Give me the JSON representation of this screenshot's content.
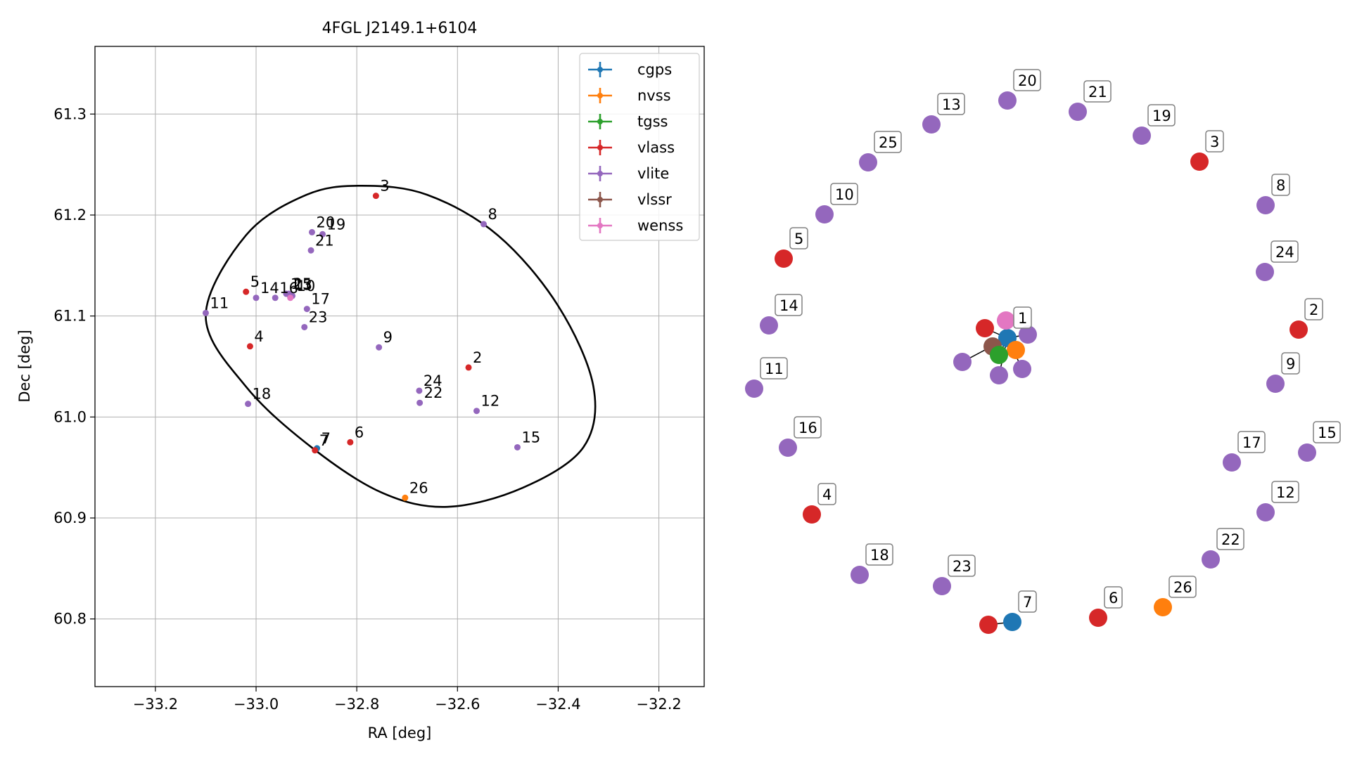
{
  "chart_data": [
    {
      "type": "scatter",
      "title": "4FGL J2149.1+6104",
      "xlabel": "RA [deg]",
      "ylabel": "Dec [deg]",
      "xlim": [
        -33.32,
        -32.11
      ],
      "ylim": [
        60.733,
        61.367
      ],
      "xticks": [
        -33.2,
        -33.0,
        -32.8,
        -32.6,
        -32.4,
        -32.2
      ],
      "xtick_labels": [
        "−33.2",
        "−33.0",
        "−32.8",
        "−32.6",
        "−32.4",
        "−32.2"
      ],
      "yticks": [
        60.8,
        60.9,
        61.0,
        61.1,
        61.2,
        61.3
      ],
      "ytick_labels": [
        "60.8",
        "60.9",
        "61.0",
        "61.1",
        "61.2",
        "61.3"
      ],
      "grid": true,
      "legend_position": "top-right",
      "legend": [
        {
          "name": "cgps",
          "color": "#1f77b4"
        },
        {
          "name": "nvss",
          "color": "#ff7f0e"
        },
        {
          "name": "tgss",
          "color": "#2ca02c"
        },
        {
          "name": "vlass",
          "color": "#d62728"
        },
        {
          "name": "vlite",
          "color": "#9467bd"
        },
        {
          "name": "vlssr",
          "color": "#8c564b"
        },
        {
          "name": "wenss",
          "color": "#e377c2"
        }
      ],
      "ellipse": {
        "center_ra": -32.66,
        "center_dec": 61.07,
        "points": [
          [
            -33.1,
            61.1
          ],
          [
            -33.02,
            61.18
          ],
          [
            -32.9,
            61.22
          ],
          [
            -32.79,
            61.229
          ],
          [
            -32.66,
            61.22
          ],
          [
            -32.52,
            61.18
          ],
          [
            -32.4,
            61.11
          ],
          [
            -32.33,
            61.03
          ],
          [
            -32.35,
            60.97
          ],
          [
            -32.47,
            60.93
          ],
          [
            -32.62,
            60.911
          ],
          [
            -32.75,
            60.925
          ],
          [
            -32.89,
            60.97
          ],
          [
            -33.02,
            61.03
          ],
          [
            -33.1,
            61.1
          ]
        ]
      },
      "points": [
        {
          "id": "1",
          "survey": "vlite",
          "ra": -32.94,
          "dec": 61.122
        },
        {
          "id": "2",
          "survey": "vlass",
          "ra": -32.578,
          "dec": 61.049
        },
        {
          "id": "3",
          "survey": "vlass",
          "ra": -32.762,
          "dec": 61.219
        },
        {
          "id": "4",
          "survey": "vlass",
          "ra": -33.012,
          "dec": 61.07
        },
        {
          "id": "5",
          "survey": "vlass",
          "ra": -33.02,
          "dec": 61.124
        },
        {
          "id": "6",
          "survey": "vlass",
          "ra": -32.813,
          "dec": 60.975
        },
        {
          "id": "7",
          "survey": "cgps",
          "ra": -32.879,
          "dec": 60.969
        },
        {
          "id": "7",
          "survey": "vlass",
          "ra": -32.883,
          "dec": 60.967
        },
        {
          "id": "8",
          "survey": "vlite",
          "ra": -32.548,
          "dec": 61.191
        },
        {
          "id": "9",
          "survey": "vlite",
          "ra": -32.756,
          "dec": 61.069
        },
        {
          "id": "10",
          "survey": "vlite",
          "ra": -32.928,
          "dec": 61.12
        },
        {
          "id": "11",
          "survey": "vlite",
          "ra": -33.1,
          "dec": 61.103
        },
        {
          "id": "12",
          "survey": "vlite",
          "ra": -32.562,
          "dec": 61.006
        },
        {
          "id": "13",
          "survey": "vlite",
          "ra": -32.934,
          "dec": 61.121
        },
        {
          "id": "14",
          "survey": "vlite",
          "ra": -33.0,
          "dec": 61.118
        },
        {
          "id": "15",
          "survey": "vlite",
          "ra": -32.481,
          "dec": 60.97
        },
        {
          "id": "16",
          "survey": "vlite",
          "ra": -32.962,
          "dec": 61.118
        },
        {
          "id": "17",
          "survey": "vlite",
          "ra": -32.899,
          "dec": 61.107
        },
        {
          "id": "18",
          "survey": "vlite",
          "ra": -33.016,
          "dec": 61.013
        },
        {
          "id": "19",
          "survey": "vlite",
          "ra": -32.868,
          "dec": 61.181
        },
        {
          "id": "20",
          "survey": "vlite",
          "ra": -32.889,
          "dec": 61.183
        },
        {
          "id": "21",
          "survey": "vlite",
          "ra": -32.891,
          "dec": 61.165
        },
        {
          "id": "22",
          "survey": "vlite",
          "ra": -32.675,
          "dec": 61.014
        },
        {
          "id": "23",
          "survey": "vlite",
          "ra": -32.904,
          "dec": 61.089
        },
        {
          "id": "24",
          "survey": "vlite",
          "ra": -32.676,
          "dec": 61.026
        },
        {
          "id": "25",
          "survey": "vlite",
          "ra": -32.935,
          "dec": 61.122
        },
        {
          "id": "26",
          "survey": "nvss",
          "ra": -32.704,
          "dec": 60.92
        },
        {
          "id": "",
          "survey": "wenss",
          "ra": -32.932,
          "dec": 61.118
        }
      ]
    },
    {
      "type": "graph",
      "title": "",
      "colors": {
        "cgps": "#1f77b4",
        "nvss": "#ff7f0e",
        "tgss": "#2ca02c",
        "vlass": "#d62728",
        "vlite": "#9467bd",
        "vlssr": "#8c564b",
        "wenss": "#e377c2"
      },
      "label_box_edge": "#808080",
      "nodes": [
        {
          "label": "20",
          "survey": "vlite"
        },
        {
          "label": "21",
          "survey": "vlite"
        },
        {
          "label": "13",
          "survey": "vlite"
        },
        {
          "label": "19",
          "survey": "vlite"
        },
        {
          "label": "25",
          "survey": "vlite"
        },
        {
          "label": "3",
          "survey": "vlass"
        },
        {
          "label": "10",
          "survey": "vlite"
        },
        {
          "label": "8",
          "survey": "vlite"
        },
        {
          "label": "5",
          "survey": "vlass"
        },
        {
          "label": "24",
          "survey": "vlite"
        },
        {
          "label": "14",
          "survey": "vlite"
        },
        {
          "label": "2",
          "survey": "vlass"
        },
        {
          "label": "11",
          "survey": "vlite"
        },
        {
          "label": "9",
          "survey": "vlite"
        },
        {
          "label": "16",
          "survey": "vlite"
        },
        {
          "label": "17",
          "survey": "vlite"
        },
        {
          "label": "15",
          "survey": "vlite"
        },
        {
          "label": "4",
          "survey": "vlass"
        },
        {
          "label": "12",
          "survey": "vlite"
        },
        {
          "label": "18",
          "survey": "vlite"
        },
        {
          "label": "22",
          "survey": "vlite"
        },
        {
          "label": "23",
          "survey": "vlite"
        },
        {
          "label": "26",
          "survey": "nvss"
        },
        {
          "label": "6",
          "survey": "vlass"
        },
        {
          "label": "7",
          "survey": "cgps"
        },
        {
          "label": "",
          "survey": "vlass"
        },
        {
          "label": "1",
          "survey": "cgps"
        },
        {
          "label": "",
          "survey": "wenss"
        },
        {
          "label": "",
          "survey": "vlass"
        },
        {
          "label": "",
          "survey": "vlite"
        },
        {
          "label": "",
          "survey": "nvss"
        },
        {
          "label": "",
          "survey": "vlssr"
        },
        {
          "label": "",
          "survey": "tgss"
        },
        {
          "label": "",
          "survey": "vlite"
        },
        {
          "label": "",
          "survey": "vlite"
        },
        {
          "label": "",
          "survey": "vlite"
        }
      ],
      "edges": [
        [
          24,
          25
        ],
        [
          26,
          27
        ],
        [
          26,
          28
        ],
        [
          26,
          29
        ],
        [
          26,
          30
        ],
        [
          26,
          31
        ],
        [
          26,
          32
        ],
        [
          26,
          33
        ],
        [
          26,
          34
        ],
        [
          26,
          35
        ]
      ]
    }
  ]
}
